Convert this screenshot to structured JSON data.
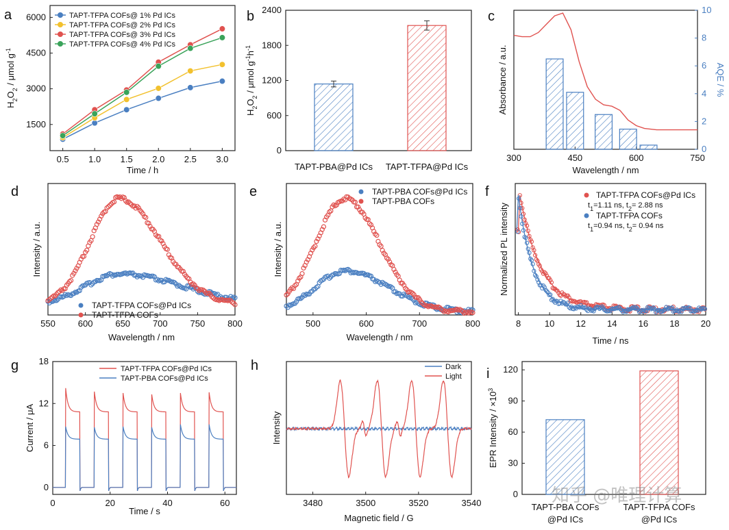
{
  "chart_data": [
    {
      "panel": "a",
      "type": "line",
      "xlabel": "Time / h",
      "ylabel": "H2O2 / μmol g-1",
      "ylabel_main": "H",
      "ylabel_sub1": "2",
      "ylabel_mid": "O",
      "ylabel_sub2": "2",
      "ylabel_rest": " / μmol g",
      "ylabel_sup": "-1",
      "xlim": [
        0.3,
        3.2
      ],
      "ylim": [
        400,
        6500
      ],
      "xticks": [
        0.5,
        1.0,
        1.5,
        2.0,
        2.5,
        3.0
      ],
      "xtick_labels": [
        "0.5",
        "1.0",
        "1.5",
        "2.0",
        "2.5",
        "3.0"
      ],
      "yticks": [
        1500,
        3000,
        4500,
        6000
      ],
      "ytick_labels": [
        "1500",
        "3000",
        "4500",
        "6000"
      ],
      "x": [
        0.5,
        1.0,
        1.5,
        2.0,
        2.5,
        3.0
      ],
      "series": [
        {
          "name": "TAPT-TFPA COFs@ 1% Pd ICs",
          "color": "#4a7fc1",
          "values": [
            880,
            1560,
            2120,
            2600,
            3050,
            3320
          ]
        },
        {
          "name": "TAPT-TFPA COFs@ 2% Pd ICs",
          "color": "#f2c12e",
          "values": [
            950,
            1780,
            2550,
            3020,
            3750,
            4020
          ]
        },
        {
          "name": "TAPT-TFPA COFs@ 3% Pd ICs",
          "color": "#e0524f",
          "values": [
            1100,
            2120,
            2950,
            4120,
            4850,
            5520
          ]
        },
        {
          "name": "TAPT-TFPA COFs@ 4% Pd ICs",
          "color": "#3aa35a",
          "values": [
            1030,
            1950,
            2850,
            3950,
            4700,
            5150
          ]
        }
      ]
    },
    {
      "panel": "b",
      "type": "bar",
      "ylabel_main": "H",
      "ylabel_sub1": "2",
      "ylabel_mid": "O",
      "ylabel_sub2": "2",
      "ylabel_rest": " / μmol g",
      "ylabel_sup": "-1",
      "ylabel_rest2": "h",
      "ylabel_sup2": "-1",
      "ylim": [
        0,
        2400
      ],
      "yticks": [
        0,
        600,
        1200,
        1800,
        2400
      ],
      "ytick_labels": [
        "0",
        "600",
        "1200",
        "1800",
        "2400"
      ],
      "categories": [
        "TAPT-PBA@Pd ICs",
        "TAPT-TFPA@Pd ICs"
      ],
      "values": [
        1140,
        2140
      ],
      "errors": [
        50,
        80
      ],
      "colors": [
        "#4a7fc1",
        "#e0524f"
      ]
    },
    {
      "panel": "c",
      "type": "bar+line",
      "xlabel": "Wavelength / nm",
      "ylabel_left": "Absorbance / a.u.",
      "ylabel_right": "AQE / %",
      "xlim": [
        300,
        750
      ],
      "ylim_right": [
        0,
        10
      ],
      "xticks": [
        300,
        450,
        600,
        750
      ],
      "xtick_labels": [
        "300",
        "450",
        "600",
        "750"
      ],
      "yticks_right": [
        0,
        2,
        4,
        6,
        8,
        10
      ],
      "ytick_labels_right": [
        "0",
        "2",
        "4",
        "6",
        "8",
        "10"
      ],
      "bars": {
        "centers": [
          400,
          450,
          520,
          580,
          630
        ],
        "width": 45,
        "values": [
          6.5,
          4.1,
          2.5,
          1.45,
          0.3
        ],
        "color": "#4a7fc1"
      },
      "absorbance": {
        "color": "#e0524f",
        "x": [
          300,
          320,
          340,
          360,
          380,
          400,
          420,
          440,
          460,
          480,
          500,
          520,
          540,
          560,
          580,
          600,
          620,
          650,
          700,
          750
        ],
        "y": [
          0.82,
          0.81,
          0.81,
          0.84,
          0.9,
          0.96,
          0.98,
          0.86,
          0.63,
          0.45,
          0.36,
          0.32,
          0.31,
          0.28,
          0.21,
          0.17,
          0.15,
          0.14,
          0.14,
          0.14
        ]
      }
    },
    {
      "panel": "d",
      "type": "scatter",
      "xlabel": "Wavelength / nm",
      "ylabel": "Intensity / a.u.",
      "xlim": [
        550,
        800
      ],
      "xticks": [
        550,
        600,
        650,
        700,
        750,
        800
      ],
      "xtick_labels": [
        "550",
        "600",
        "650",
        "700",
        "750",
        "800"
      ],
      "series": [
        {
          "name": "TAPT-TFPA COFs@Pd ICs",
          "color": "#4a7fc1",
          "peak": 645,
          "amplitude": 0.28,
          "base": 0.03,
          "sigma_left": 45,
          "sigma_right": 85
        },
        {
          "name": "TAPT-TFPA COFs",
          "color": "#e0524f",
          "peak": 645,
          "amplitude": 0.97,
          "base": 0.03,
          "sigma_left": 38,
          "sigma_right": 55
        }
      ]
    },
    {
      "panel": "e",
      "type": "scatter",
      "xlabel": "Wavelength / nm",
      "ylabel": "Intensity / a.u.",
      "xlim": [
        450,
        800
      ],
      "xticks": [
        500,
        600,
        700,
        800
      ],
      "xtick_labels": [
        "500",
        "600",
        "700",
        "800"
      ],
      "series": [
        {
          "name": "TAPT-PBA COFs@Pd ICs",
          "color": "#4a7fc1",
          "peak": 560,
          "amplitude": 0.36,
          "base": 0.0,
          "sigma_left": 55,
          "sigma_right": 80
        },
        {
          "name": "TAPT-PBA COFs",
          "color": "#e0524f",
          "peak": 560,
          "amplitude": 1.0,
          "base": 0.0,
          "sigma_left": 55,
          "sigma_right": 65
        }
      ]
    },
    {
      "panel": "f",
      "type": "scatter",
      "xlabel": "Time / ns",
      "ylabel": "Normalized PL intensity",
      "xlim": [
        7.8,
        20
      ],
      "xticks": [
        8,
        10,
        12,
        14,
        16,
        18,
        20
      ],
      "xtick_labels": [
        "8",
        "10",
        "12",
        "14",
        "16",
        "18",
        "20"
      ],
      "series": [
        {
          "name": "TAPT-TFPA COFs@Pd ICs",
          "color": "#e0524f",
          "t0": 8.1,
          "tau": 1.35,
          "annotation": "t1=1.11 ns, t2= 2.88 ns",
          "ann_t1": "t",
          "ann_s1": "1",
          "ann_v1": "=1.11 ns, t",
          "ann_s2": "2",
          "ann_v2": "= 2.88 ns"
        },
        {
          "name": "TAPT-TFPA COFs",
          "color": "#4a7fc1",
          "t0": 8.0,
          "tau": 0.95,
          "annotation": "t1=0.94 ns, t2= 0.94 ns",
          "ann_t1": "t",
          "ann_s1": "1",
          "ann_v1": "=0.94 ns, t",
          "ann_s2": "2",
          "ann_v2": "= 0.94 ns"
        }
      ]
    },
    {
      "panel": "g",
      "type": "line",
      "xlabel": "Time / s",
      "ylabel": "Current / μA",
      "xlim": [
        0,
        64
      ],
      "ylim": [
        -1,
        18
      ],
      "xticks": [
        0,
        20,
        40,
        60
      ],
      "xtick_labels": [
        "0",
        "20",
        "40",
        "60"
      ],
      "yticks": [
        0,
        6,
        12,
        18
      ],
      "ytick_labels": [
        "0",
        "6",
        "12",
        "18"
      ],
      "on_periods": [
        [
          4.5,
          9.5
        ],
        [
          14.5,
          19.5
        ],
        [
          24.5,
          29.5
        ],
        [
          34.5,
          39.5
        ],
        [
          44.5,
          49.5
        ],
        [
          54.5,
          59.5
        ]
      ],
      "series": [
        {
          "name": "TAPT-TFPA COFs@Pd ICs",
          "color": "#e0524f",
          "peaks": [
            14.2,
            13.7,
            13.5,
            13.3,
            13.5,
            13.6
          ],
          "plateau": 10.8
        },
        {
          "name": "TAPT-PBA COFs@Pd ICs",
          "color": "#4a7fc1",
          "peaks": [
            8.7,
            8.6,
            8.7,
            8.6,
            9.0,
            9.0
          ],
          "plateau": 6.9
        }
      ]
    },
    {
      "panel": "h",
      "type": "line",
      "xlabel": "Magnetic field / G",
      "ylabel": "Intensity",
      "xlim": [
        3470,
        3540
      ],
      "xticks": [
        3480,
        3500,
        3520,
        3540
      ],
      "xtick_labels": [
        "3480",
        "3500",
        "3520",
        "3540"
      ],
      "lines_G": [
        3492,
        3506,
        3519,
        3531
      ],
      "series": [
        {
          "name": "Dark",
          "color": "#4a7fc1"
        },
        {
          "name": "Light",
          "color": "#e0524f"
        }
      ]
    },
    {
      "panel": "i",
      "type": "bar",
      "ylabel": "EPR Intensity / ×10",
      "ylabel_sup": "3",
      "ylim": [
        0,
        128
      ],
      "yticks": [
        0,
        30,
        60,
        90,
        120
      ],
      "ytick_labels": [
        "0",
        "30",
        "60",
        "90",
        "120"
      ],
      "categories": [
        "TAPT-PBA COFs @Pd ICs",
        "TAPT-TFPA COFs @Pd ICs"
      ],
      "cat_line1": [
        "TAPT-PBA COFs",
        "TAPT-TFPA COFs"
      ],
      "cat_line2": [
        "@Pd ICs",
        "@Pd ICs"
      ],
      "values": [
        72,
        119
      ],
      "colors": [
        "#4a7fc1",
        "#e0524f"
      ]
    }
  ],
  "panel_labels": [
    "a",
    "b",
    "c",
    "d",
    "e",
    "f",
    "g",
    "h",
    "i"
  ],
  "watermark": "知乎 @唯理计算"
}
